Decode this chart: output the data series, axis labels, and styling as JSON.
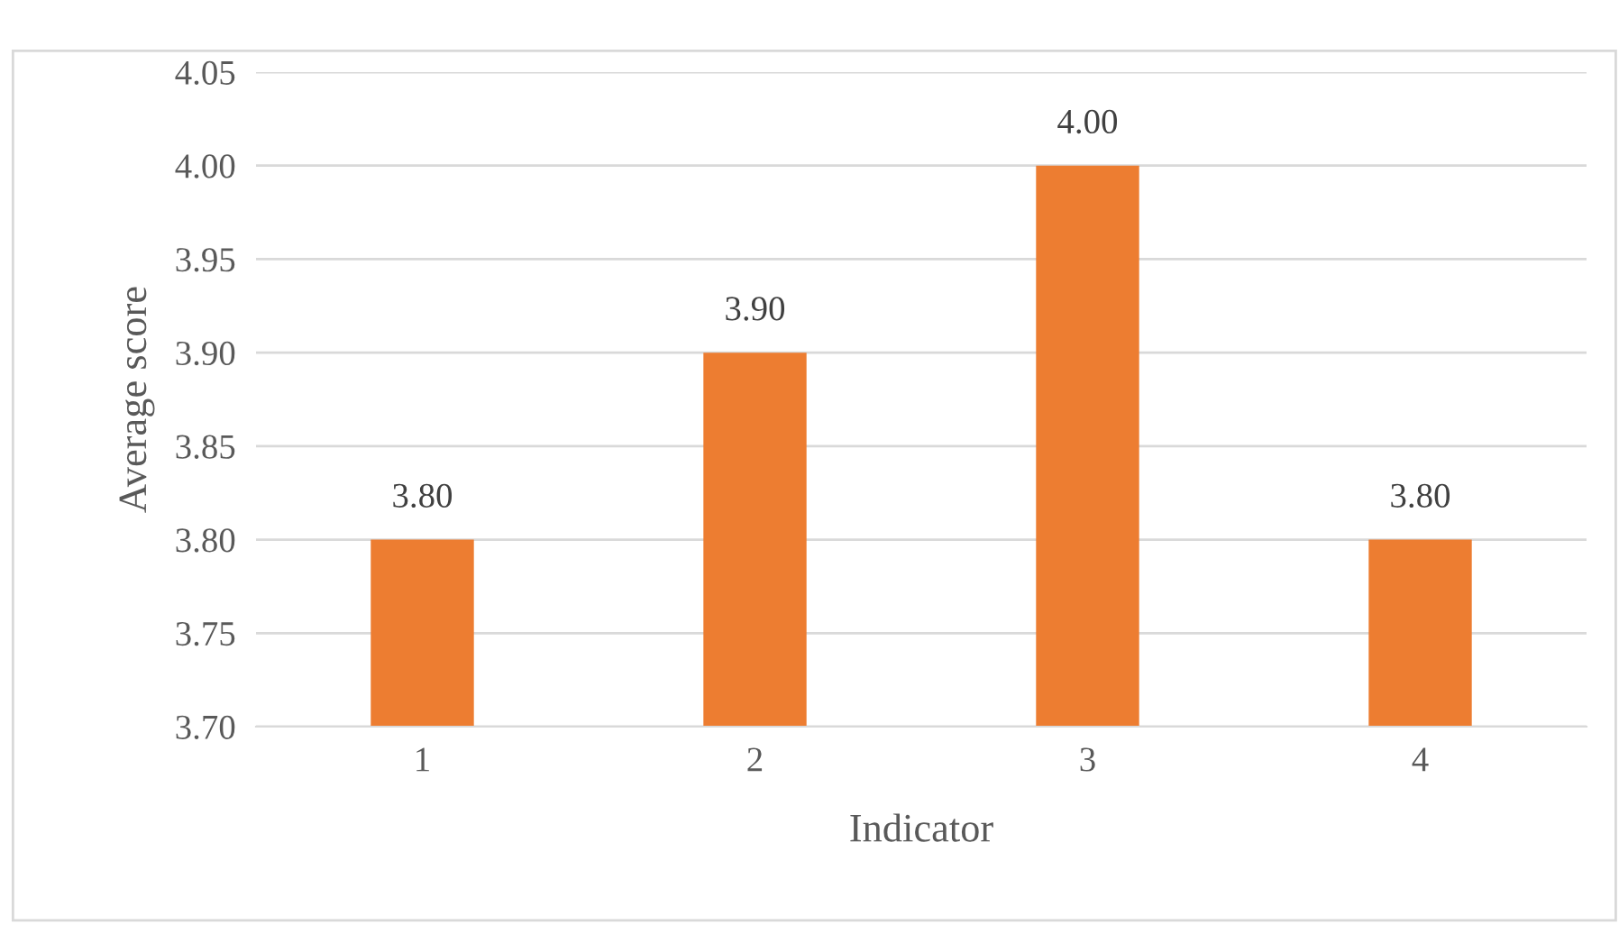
{
  "chart_data": {
    "type": "bar",
    "xlabel": "Indicator",
    "ylabel": "Average score",
    "categories": [
      "1",
      "2",
      "3",
      "4"
    ],
    "values": [
      3.8,
      3.9,
      4.0,
      3.8
    ],
    "color": "#ed7d31",
    "ylim": [
      3.7,
      4.05
    ],
    "yticks": [
      {
        "value": 3.7,
        "label": "3.70"
      },
      {
        "value": 3.75,
        "label": "3.75"
      },
      {
        "value": 3.8,
        "label": "3.80"
      },
      {
        "value": 3.85,
        "label": "3.85"
      },
      {
        "value": 3.9,
        "label": "3.90"
      },
      {
        "value": 3.95,
        "label": "3.95"
      },
      {
        "value": 4.0,
        "label": "4.00"
      },
      {
        "value": 4.05,
        "label": "4.05"
      }
    ],
    "grid": "y",
    "value_labels": [
      "3.80",
      "3.90",
      "4.00",
      "3.80"
    ]
  }
}
